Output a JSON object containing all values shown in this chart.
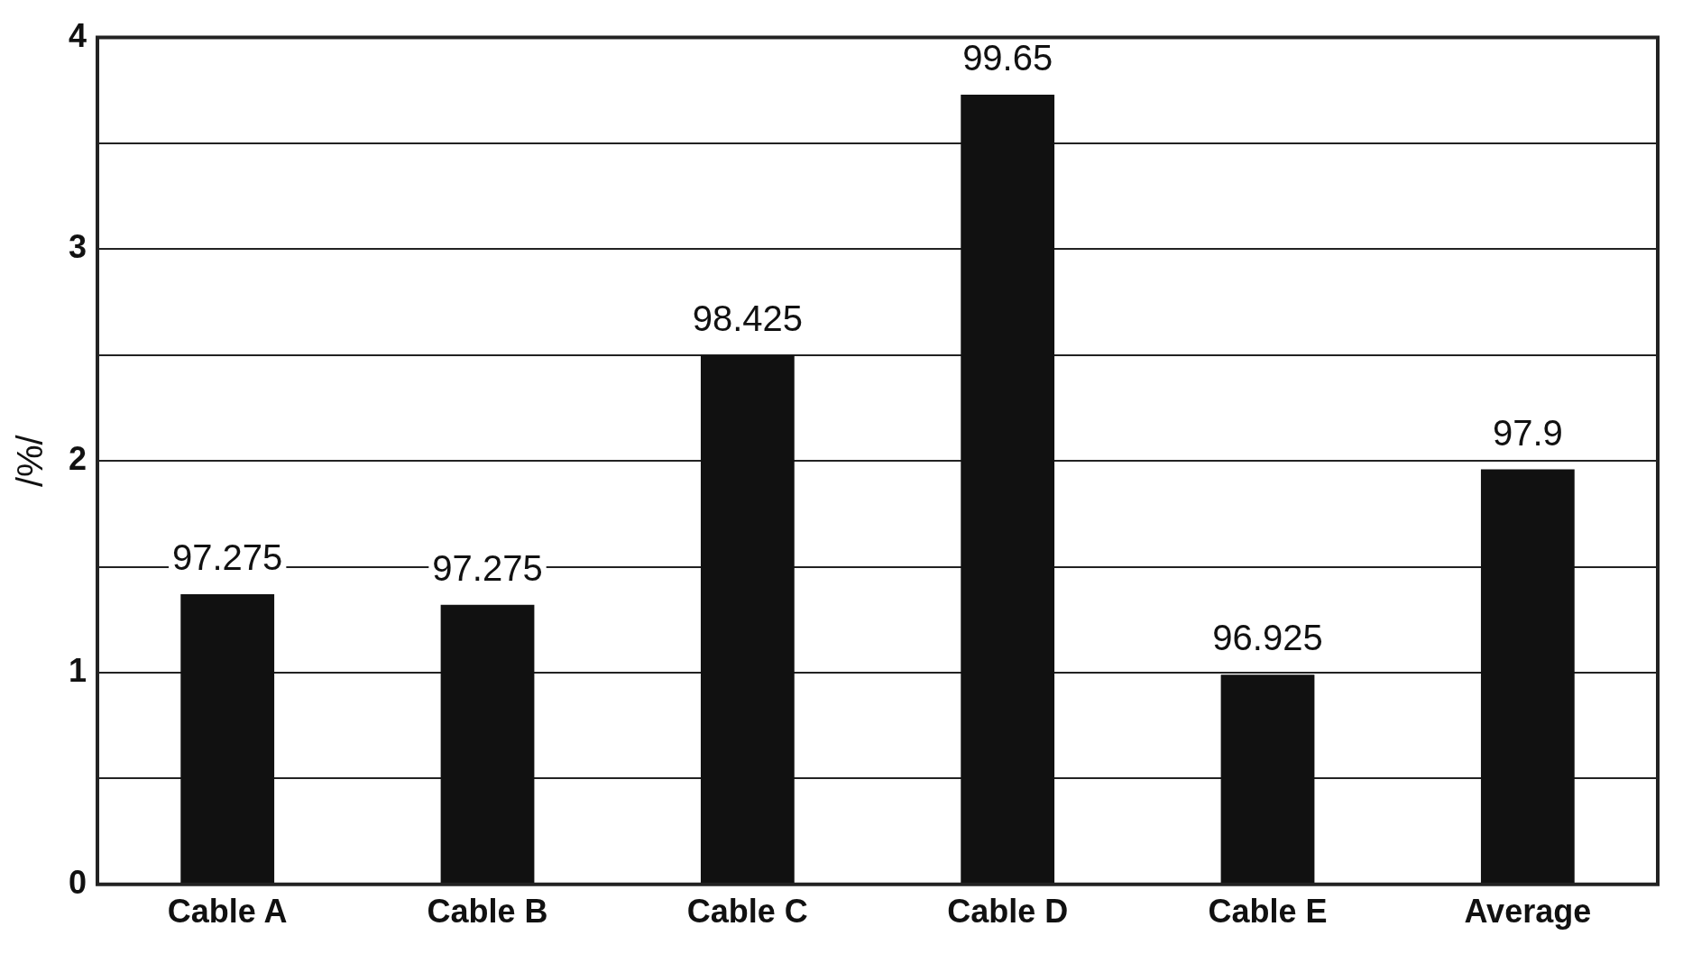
{
  "chart_data": {
    "type": "bar",
    "ylabel": "/%/",
    "categories": [
      "Cable A",
      "Cable B",
      "Cable C",
      "Cable D",
      "Cable E",
      "Average"
    ],
    "values": [
      1.37,
      1.32,
      2.5,
      3.73,
      0.99,
      1.96
    ],
    "annotations": [
      {
        "text": "97.275",
        "x": "Cable A",
        "y": 1.37
      },
      {
        "text": "97.275",
        "x": "Cable B",
        "y": 1.32
      },
      {
        "text": "98.425",
        "x": "Cable C",
        "y": 2.5
      },
      {
        "text": "99.65",
        "x": "Cable D",
        "y": 3.73
      },
      {
        "text": "96.925",
        "x": "Cable E",
        "y": 0.99
      },
      {
        "text": "97.9",
        "x": "Average",
        "y": 1.96
      }
    ],
    "color": "#111111",
    "ylim": [
      0,
      4
    ],
    "yticks": [
      0,
      {
        "value": 0.5,
        "label": null
      },
      1,
      {
        "value": 1.5,
        "label": null
      },
      2,
      {
        "value": 2.5,
        "label": null
      },
      3,
      {
        "value": 3.5,
        "label": null
      },
      4
    ],
    "grid": "y",
    "legend": false
  }
}
